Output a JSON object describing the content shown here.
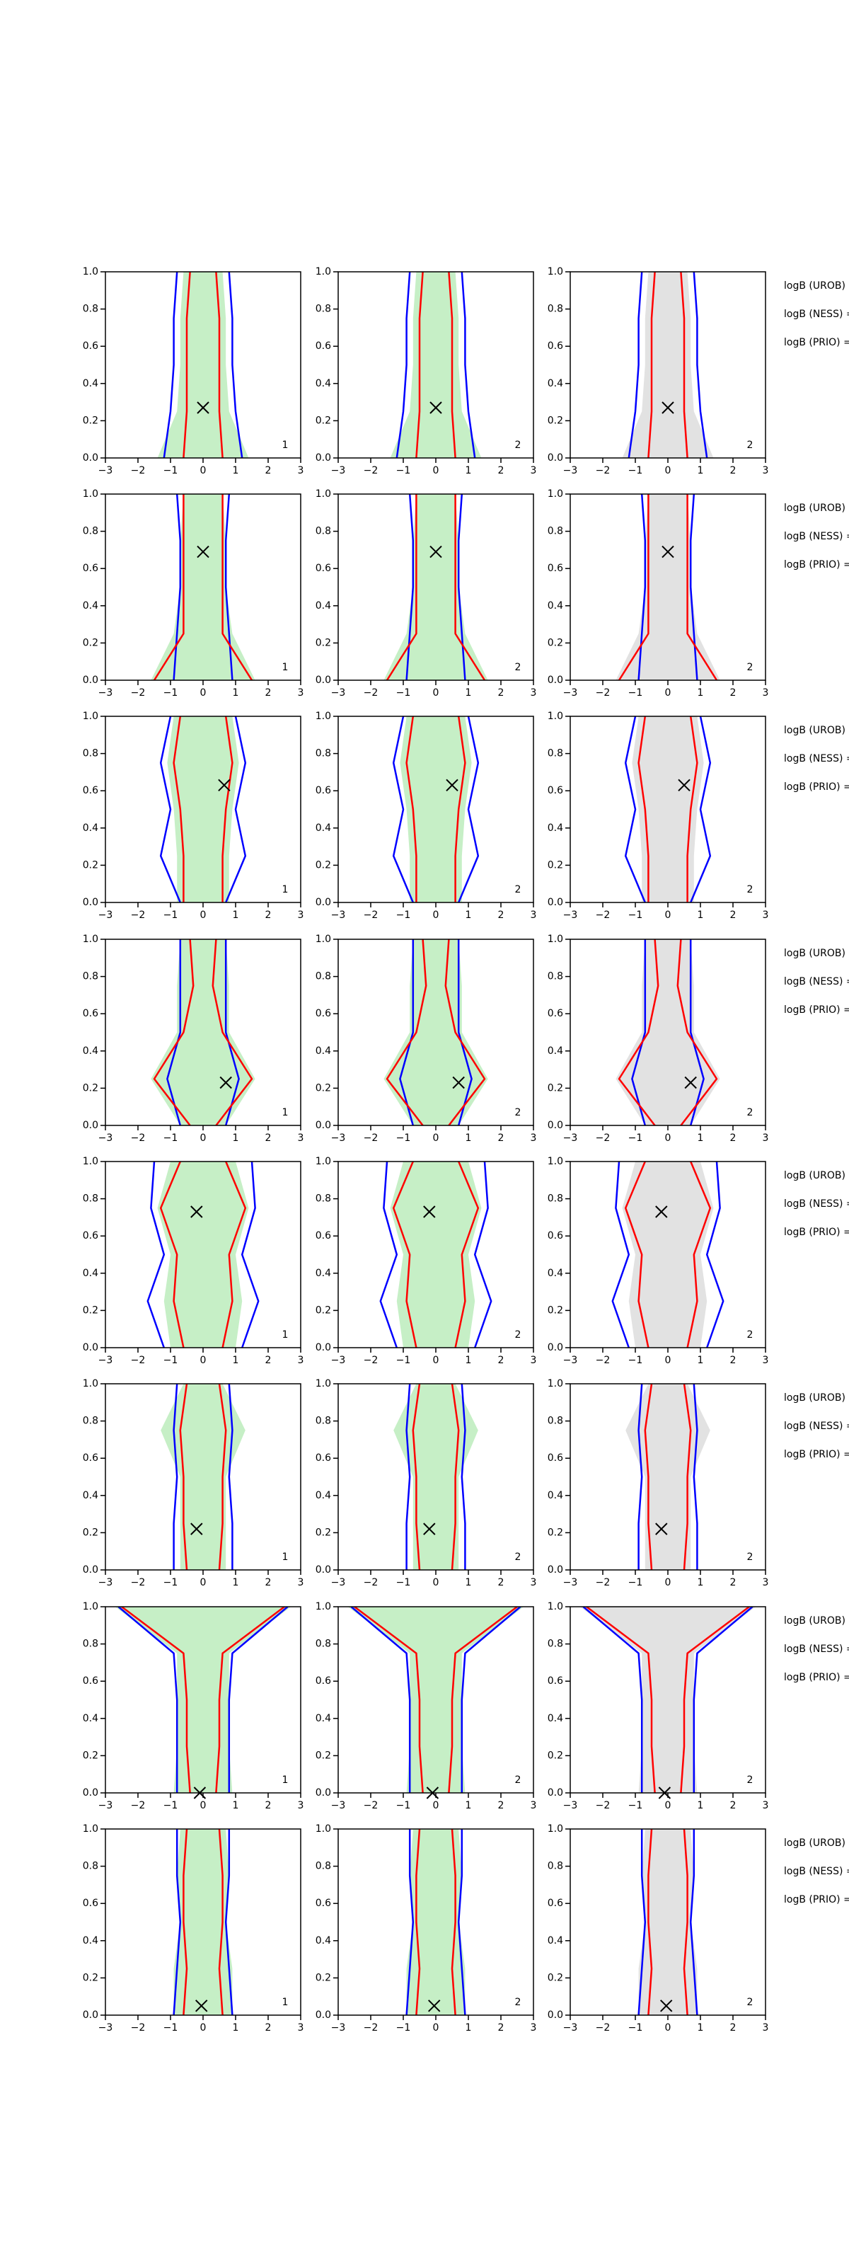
{
  "chart_data": {
    "type": "contour-grid",
    "xlim": [
      -3,
      3
    ],
    "xticks": [
      {
        "value": -3,
        "label": "−3"
      },
      {
        "value": -2,
        "label": "−2"
      },
      {
        "value": -1,
        "label": "−1"
      },
      0,
      1,
      2,
      3
    ],
    "ylim": [
      0,
      1
    ],
    "yticks": [
      {
        "value": 0,
        "label": "0.0"
      },
      {
        "value": 0.2,
        "label": "0.2"
      },
      {
        "value": 0.4,
        "label": "0.4"
      },
      {
        "value": 0.6,
        "label": "0.6"
      },
      {
        "value": 0.8,
        "label": "0.8"
      },
      {
        "value": 1,
        "label": "1.0"
      }
    ],
    "contour_y": [
      0,
      0.25,
      0.5,
      0.75,
      1
    ],
    "rows": [
      {
        "annotations": [
          "logB (UROB) =",
          "logB (NESS) =",
          "logB (PRIO) ="
        ],
        "fill": [
          1.4,
          0.8,
          0.7,
          0.7,
          0.6
        ],
        "contours": [
          {
            "color": "#0000ff",
            "values": [
              1.2,
              1.0,
              0.9,
              0.9,
              0.8
            ]
          },
          {
            "color": "#ff0000",
            "values": [
              0.6,
              0.5,
              0.5,
              0.5,
              0.4
            ]
          }
        ],
        "panels": [
          {
            "marker": [
              0,
              0.27
            ],
            "corner": 1,
            "fill_color": "#c6efc6"
          },
          {
            "marker": [
              0,
              0.27
            ],
            "corner": 2,
            "fill_color": "#c6efc6"
          },
          {
            "marker": [
              0,
              0.27
            ],
            "corner": 2,
            "fill_color": "#e2e2e2"
          }
        ]
      },
      {
        "annotations": [
          "logB (UROB) =",
          "logB (NESS) =",
          "logB (PRIO) ="
        ],
        "fill": [
          1.6,
          0.9,
          0.7,
          0.7,
          0.6
        ],
        "contours": [
          {
            "color": "#0000ff",
            "values": [
              0.9,
              0.8,
              0.7,
              0.7,
              0.8
            ]
          },
          {
            "color": "#ff0000",
            "values": [
              1.5,
              0.6,
              0.6,
              0.6,
              0.6
            ]
          }
        ],
        "panels": [
          {
            "marker": [
              0,
              0.69
            ],
            "corner": 1,
            "fill_color": "#c6efc6"
          },
          {
            "marker": [
              0,
              0.69
            ],
            "corner": 2,
            "fill_color": "#c6efc6"
          },
          {
            "marker": [
              0,
              0.69
            ],
            "corner": 2,
            "fill_color": "#e2e2e2"
          }
        ]
      },
      {
        "annotations": [
          "logB (UROB) =",
          "logB (NESS) =",
          "logB (PRIO) ="
        ],
        "fill": [
          0.8,
          0.8,
          0.9,
          1.1,
          0.9
        ],
        "contours": [
          {
            "color": "#0000ff",
            "values": [
              0.7,
              1.3,
              1.0,
              1.3,
              1.0
            ]
          },
          {
            "color": "#ff0000",
            "values": [
              0.6,
              0.6,
              0.7,
              0.9,
              0.7
            ]
          }
        ],
        "panels": [
          {
            "marker": [
              0.65,
              0.63
            ],
            "corner": 1,
            "fill_color": "#c6efc6"
          },
          {
            "marker": [
              0.5,
              0.63
            ],
            "corner": 2,
            "fill_color": "#c6efc6"
          },
          {
            "marker": [
              0.5,
              0.63
            ],
            "corner": 2,
            "fill_color": "#e2e2e2"
          }
        ]
      },
      {
        "annotations": [
          "logB (UROB) =",
          "logB (NESS) =",
          "logB (PRIO) ="
        ],
        "fill": [
          0.7,
          1.6,
          0.8,
          0.8,
          0.7
        ],
        "contours": [
          {
            "color": "#0000ff",
            "values": [
              0.7,
              1.1,
              0.7,
              0.7,
              0.7
            ]
          },
          {
            "color": "#ff0000",
            "values": [
              0.4,
              1.5,
              0.6,
              0.3,
              0.4
            ]
          }
        ],
        "panels": [
          {
            "marker": [
              0.7,
              0.23
            ],
            "corner": 1,
            "fill_color": "#c6efc6"
          },
          {
            "marker": [
              0.7,
              0.23
            ],
            "corner": 2,
            "fill_color": "#c6efc6"
          },
          {
            "marker": [
              0.7,
              0.23
            ],
            "corner": 2,
            "fill_color": "#e2e2e2"
          }
        ]
      },
      {
        "annotations": [
          "logB (UROB) =",
          "logB (NESS) =",
          "logB (PRIO) ="
        ],
        "fill": [
          1.0,
          1.2,
          1.0,
          1.4,
          1.0
        ],
        "contours": [
          {
            "color": "#0000ff",
            "values": [
              1.2,
              1.7,
              1.2,
              1.6,
              1.5
            ]
          },
          {
            "color": "#ff0000",
            "values": [
              0.6,
              0.9,
              0.8,
              1.3,
              0.7
            ]
          }
        ],
        "panels": [
          {
            "marker": [
              -0.2,
              0.73
            ],
            "corner": 1,
            "fill_color": "#c6efc6"
          },
          {
            "marker": [
              -0.2,
              0.73
            ],
            "corner": 2,
            "fill_color": "#c6efc6"
          },
          {
            "marker": [
              -0.2,
              0.73
            ],
            "corner": 2,
            "fill_color": "#e2e2e2"
          }
        ]
      },
      {
        "annotations": [
          "logB (UROB) =",
          "logB (NESS) =",
          "logB (PRIO) ="
        ],
        "fill": [
          0.7,
          0.7,
          0.7,
          1.3,
          0.6
        ],
        "contours": [
          {
            "color": "#0000ff",
            "values": [
              0.9,
              0.9,
              0.8,
              0.9,
              0.8
            ]
          },
          {
            "color": "#ff0000",
            "values": [
              0.5,
              0.6,
              0.6,
              0.7,
              0.5
            ]
          }
        ],
        "panels": [
          {
            "marker": [
              -0.2,
              0.22
            ],
            "corner": 1,
            "fill_color": "#c6efc6"
          },
          {
            "marker": [
              -0.2,
              0.22
            ],
            "corner": 2,
            "fill_color": "#c6efc6"
          },
          {
            "marker": [
              -0.2,
              0.22
            ],
            "corner": 2,
            "fill_color": "#e2e2e2"
          }
        ]
      },
      {
        "annotations": [
          "logB (UROB) =",
          "logB (NESS) =",
          "logB (PRIO) ="
        ],
        "fill": [
          0.9,
          0.8,
          0.8,
          0.8,
          2.7
        ],
        "contours": [
          {
            "color": "#0000ff",
            "values": [
              0.8,
              0.8,
              0.8,
              0.9,
              2.6
            ]
          },
          {
            "color": "#ff0000",
            "values": [
              0.4,
              0.5,
              0.5,
              0.6,
              2.5
            ]
          }
        ],
        "panels": [
          {
            "marker": [
              -0.1,
              0.0
            ],
            "corner": 1,
            "fill_color": "#c6efc6"
          },
          {
            "marker": [
              -0.1,
              0.0
            ],
            "corner": 2,
            "fill_color": "#c6efc6"
          },
          {
            "marker": [
              -0.1,
              0.0
            ],
            "corner": 2,
            "fill_color": "#e2e2e2"
          }
        ]
      },
      {
        "annotations": [
          "logB (UROB) =",
          "logB (NESS) =",
          "logB (PRIO) ="
        ],
        "fill": [
          0.9,
          0.9,
          0.7,
          0.8,
          0.7
        ],
        "contours": [
          {
            "color": "#0000ff",
            "values": [
              0.9,
              0.8,
              0.7,
              0.8,
              0.8
            ]
          },
          {
            "color": "#ff0000",
            "values": [
              0.6,
              0.5,
              0.6,
              0.6,
              0.5
            ]
          }
        ],
        "panels": [
          {
            "marker": [
              -0.05,
              0.05
            ],
            "corner": 1,
            "fill_color": "#c6efc6"
          },
          {
            "marker": [
              -0.05,
              0.05
            ],
            "corner": 2,
            "fill_color": "#c6efc6"
          },
          {
            "marker": [
              -0.05,
              0.05
            ],
            "corner": 2,
            "fill_color": "#e2e2e2"
          }
        ]
      }
    ]
  }
}
